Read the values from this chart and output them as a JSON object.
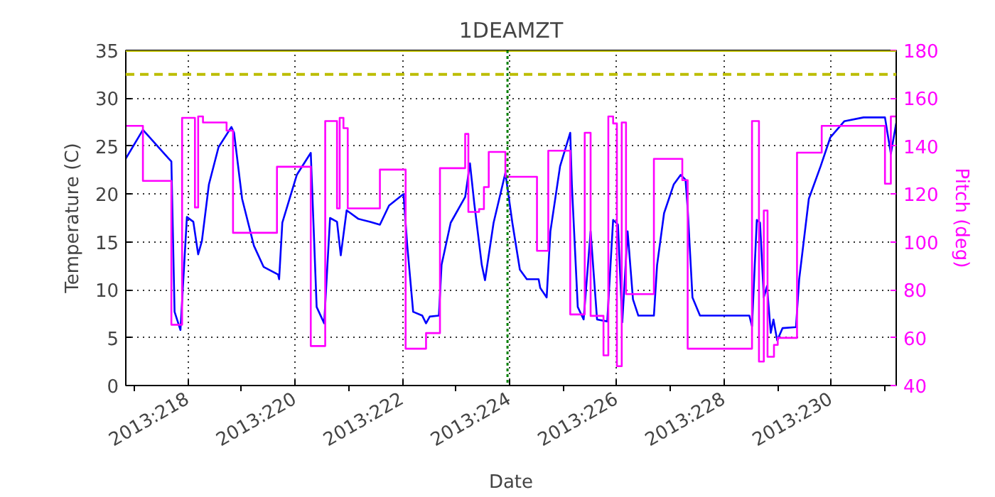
{
  "chart_data": {
    "type": "line",
    "title": "1DEAMZT",
    "xlabel": "Date",
    "ylabel": "Temperature (C)",
    "y2label": "Pitch (deg)",
    "xlim": [
      "2013-08-04T20:10",
      "2013-08-19T05:02"
    ],
    "xticks": [
      {
        "value": "2013-08-06",
        "label": "2013:218"
      },
      {
        "value": "2013-08-08",
        "label": "2013:220"
      },
      {
        "value": "2013-08-10",
        "label": "2013:222"
      },
      {
        "value": "2013-08-12",
        "label": "2013:224"
      },
      {
        "value": "2013-08-14",
        "label": "2013:226"
      },
      {
        "value": "2013-08-16",
        "label": "2013:228"
      },
      {
        "value": "2013-08-18",
        "label": "2013:230"
      }
    ],
    "ylim": [
      0,
      35
    ],
    "yticks": [
      0,
      5,
      10,
      15,
      20,
      25,
      30,
      35
    ],
    "y2lim": [
      40,
      180
    ],
    "y2ticks": [
      40,
      60,
      80,
      100,
      120,
      140,
      160,
      180
    ],
    "grid": true,
    "line_style": "solid",
    "marker": "none",
    "series": [
      {
        "color": "#0000ff",
        "x": [
          "2013-08-04T20:10",
          "2013-08-05T03:50",
          "2013-08-05T15:22",
          "2013-08-05T16:34",
          "2013-08-05T18:00",
          "2013-08-05T20:38",
          "2013-08-05T23:31",
          "2013-08-06T02:24",
          "2013-08-06T04:34",
          "2013-08-06T06:14",
          "2013-08-06T09:22",
          "2013-08-06T13:41",
          "2013-08-06T19:26",
          "2013-08-06T20:38",
          "2013-08-07T00:14",
          "2013-08-07T05:31",
          "2013-08-07T09:50",
          "2013-08-07T16:19",
          "2013-08-07T16:48",
          "2013-08-07T18:14",
          "2013-08-08T00:43",
          "2013-08-08T06:58",
          "2013-08-08T08:10",
          "2013-08-08T09:36",
          "2013-08-08T12:58",
          "2013-08-08T15:36",
          "2013-08-08T18:43",
          "2013-08-08T20:24",
          "2013-08-08T23:02",
          "2013-08-09T04:19",
          "2013-08-09T09:36",
          "2013-08-09T13:55",
          "2013-08-09T18:00",
          "2013-08-10T00:29",
          "2013-08-10T02:10",
          "2013-08-10T04:48",
          "2013-08-10T08:53",
          "2013-08-10T10:34",
          "2013-08-10T12:14",
          "2013-08-10T16:19",
          "2013-08-10T17:31",
          "2013-08-10T21:36",
          "2013-08-11T04:05",
          "2013-08-11T06:14",
          "2013-08-11T08:10",
          "2013-08-11T11:31",
          "2013-08-11T12:58",
          "2013-08-11T16:48",
          "2013-08-11T22:05",
          "2013-08-12T01:12",
          "2013-08-12T04:34",
          "2013-08-12T07:41",
          "2013-08-12T12:58",
          "2013-08-12T13:41",
          "2013-08-12T16:34",
          "2013-08-12T18:14",
          "2013-08-12T22:34",
          "2013-08-13T03:07",
          "2013-08-13T03:50",
          "2013-08-13T06:29",
          "2013-08-13T09:07",
          "2013-08-13T12:14",
          "2013-08-13T15:07",
          "2013-08-13T19:41",
          "2013-08-13T22:19",
          "2013-08-14T00:29",
          "2013-08-14T02:24",
          "2013-08-14T04:48",
          "2013-08-14T07:12",
          "2013-08-14T09:36",
          "2013-08-14T16:34",
          "2013-08-14T18:00",
          "2013-08-14T21:07",
          "2013-08-15T01:26",
          "2013-08-15T04:34",
          "2013-08-15T06:43",
          "2013-08-15T07:41",
          "2013-08-15T09:50",
          "2013-08-15T13:12",
          "2013-08-16T11:17",
          "2013-08-16T12:29",
          "2013-08-16T14:38",
          "2013-08-16T16:05",
          "2013-08-16T17:46",
          "2013-08-16T19:12",
          "2013-08-16T20:53",
          "2013-08-16T22:05",
          "2013-08-16T23:46",
          "2013-08-17T02:10",
          "2013-08-17T08:10",
          "2013-08-17T09:36",
          "2013-08-17T13:55",
          "2013-08-17T19:12",
          "2013-08-17T23:31",
          "2013-08-18T05:46",
          "2013-08-18T14:24",
          "2013-08-19T00:00",
          "2013-08-19T02:38",
          "2013-08-19T05:02"
        ],
        "values": [
          23.7,
          26.7,
          23.7,
          23.4,
          7.7,
          5.8,
          17.6,
          17.1,
          13.7,
          15.1,
          21.0,
          24.9,
          27.0,
          26.4,
          19.5,
          14.6,
          12.4,
          11.6,
          11.1,
          17.0,
          22.0,
          24.3,
          17.0,
          8.2,
          6.5,
          17.5,
          17.1,
          13.6,
          18.3,
          17.4,
          17.1,
          16.8,
          18.8,
          20.0,
          14.6,
          7.7,
          7.3,
          6.5,
          7.2,
          7.3,
          12.6,
          17.0,
          19.7,
          23.2,
          19.0,
          12.6,
          11.0,
          17.0,
          22.2,
          17.0,
          12.1,
          11.1,
          11.1,
          10.2,
          9.2,
          16.1,
          22.9,
          26.4,
          21.0,
          8.2,
          6.9,
          16.1,
          6.9,
          6.7,
          17.3,
          16.8,
          6.6,
          16.1,
          9.0,
          7.3,
          7.3,
          12.6,
          18.0,
          21.0,
          22.0,
          21.5,
          18.5,
          9.2,
          7.3,
          7.3,
          6.2,
          17.3,
          17.0,
          9.2,
          10.4,
          5.5,
          6.9,
          4.7,
          6.0,
          6.1,
          11.1,
          19.5,
          22.9,
          25.9,
          27.6,
          28.0,
          28.0,
          24.2,
          27.4
        ]
      },
      {
        "type": "step",
        "axis": "y2",
        "color": "#ff00ff",
        "x": [
          "2013-08-04T20:10",
          "2013-08-05T03:50",
          "2013-08-05T16:34",
          "2013-08-05T21:22",
          "2013-08-06T03:07",
          "2013-08-06T04:34",
          "2013-08-06T06:43",
          "2013-08-06T17:17",
          "2013-08-06T20:10",
          "2013-08-07T15:50",
          "2013-08-08T06:58",
          "2013-08-08T13:26",
          "2013-08-08T18:43",
          "2013-08-08T19:55",
          "2013-08-08T21:36",
          "2013-08-08T23:31",
          "2013-08-09T13:55",
          "2013-08-10T01:26",
          "2013-08-10T10:34",
          "2013-08-10T16:48",
          "2013-08-11T04:05",
          "2013-08-11T05:31",
          "2013-08-11T10:19",
          "2013-08-11T12:29",
          "2013-08-11T14:38",
          "2013-08-11T22:05",
          "2013-08-12T12:14",
          "2013-08-12T17:17",
          "2013-08-13T03:07",
          "2013-08-13T09:36",
          "2013-08-13T12:14",
          "2013-08-13T18:00",
          "2013-08-13T20:10",
          "2013-08-13T22:19",
          "2013-08-14T00:00",
          "2013-08-14T02:10",
          "2013-08-14T04:05",
          "2013-08-14T16:34",
          "2013-08-15T05:17",
          "2013-08-15T07:41",
          "2013-08-16T12:29",
          "2013-08-16T15:36",
          "2013-08-16T17:46",
          "2013-08-16T19:26",
          "2013-08-16T22:19",
          "2013-08-17T00:00",
          "2013-08-17T08:38",
          "2013-08-17T19:41",
          "2013-08-19T00:00",
          "2013-08-19T02:38",
          "2013-08-19T05:02"
        ],
        "values": [
          148.5,
          125.5,
          65.4,
          151.8,
          114.4,
          152.4,
          149.9,
          146.5,
          103.8,
          131.4,
          56.5,
          150.5,
          114.0,
          151.8,
          147.5,
          114.0,
          130.2,
          55.4,
          61.9,
          130.8,
          145.1,
          112.5,
          113.7,
          122.9,
          137.6,
          127.2,
          96.3,
          138.1,
          69.7,
          145.6,
          69.1,
          52.6,
          152.4,
          149.5,
          48.1,
          149.9,
          78.2,
          134.7,
          125.8,
          55.4,
          150.5,
          50.0,
          113.1,
          52.0,
          57.0,
          59.9,
          137.3,
          148.5,
          124.3,
          152.4,
          152.4
        ]
      }
    ],
    "ref_lines": [
      {
        "axis": "y",
        "value": 32.5,
        "color": "#bcbd00",
        "line_style": "dashed"
      },
      {
        "axis": "y",
        "value": 35,
        "color": "#bcbd00",
        "line_style": "solid"
      },
      {
        "axis": "x",
        "value": "2013-08-11T23:02",
        "color": "#008000",
        "line_style": "dotted"
      }
    ]
  }
}
